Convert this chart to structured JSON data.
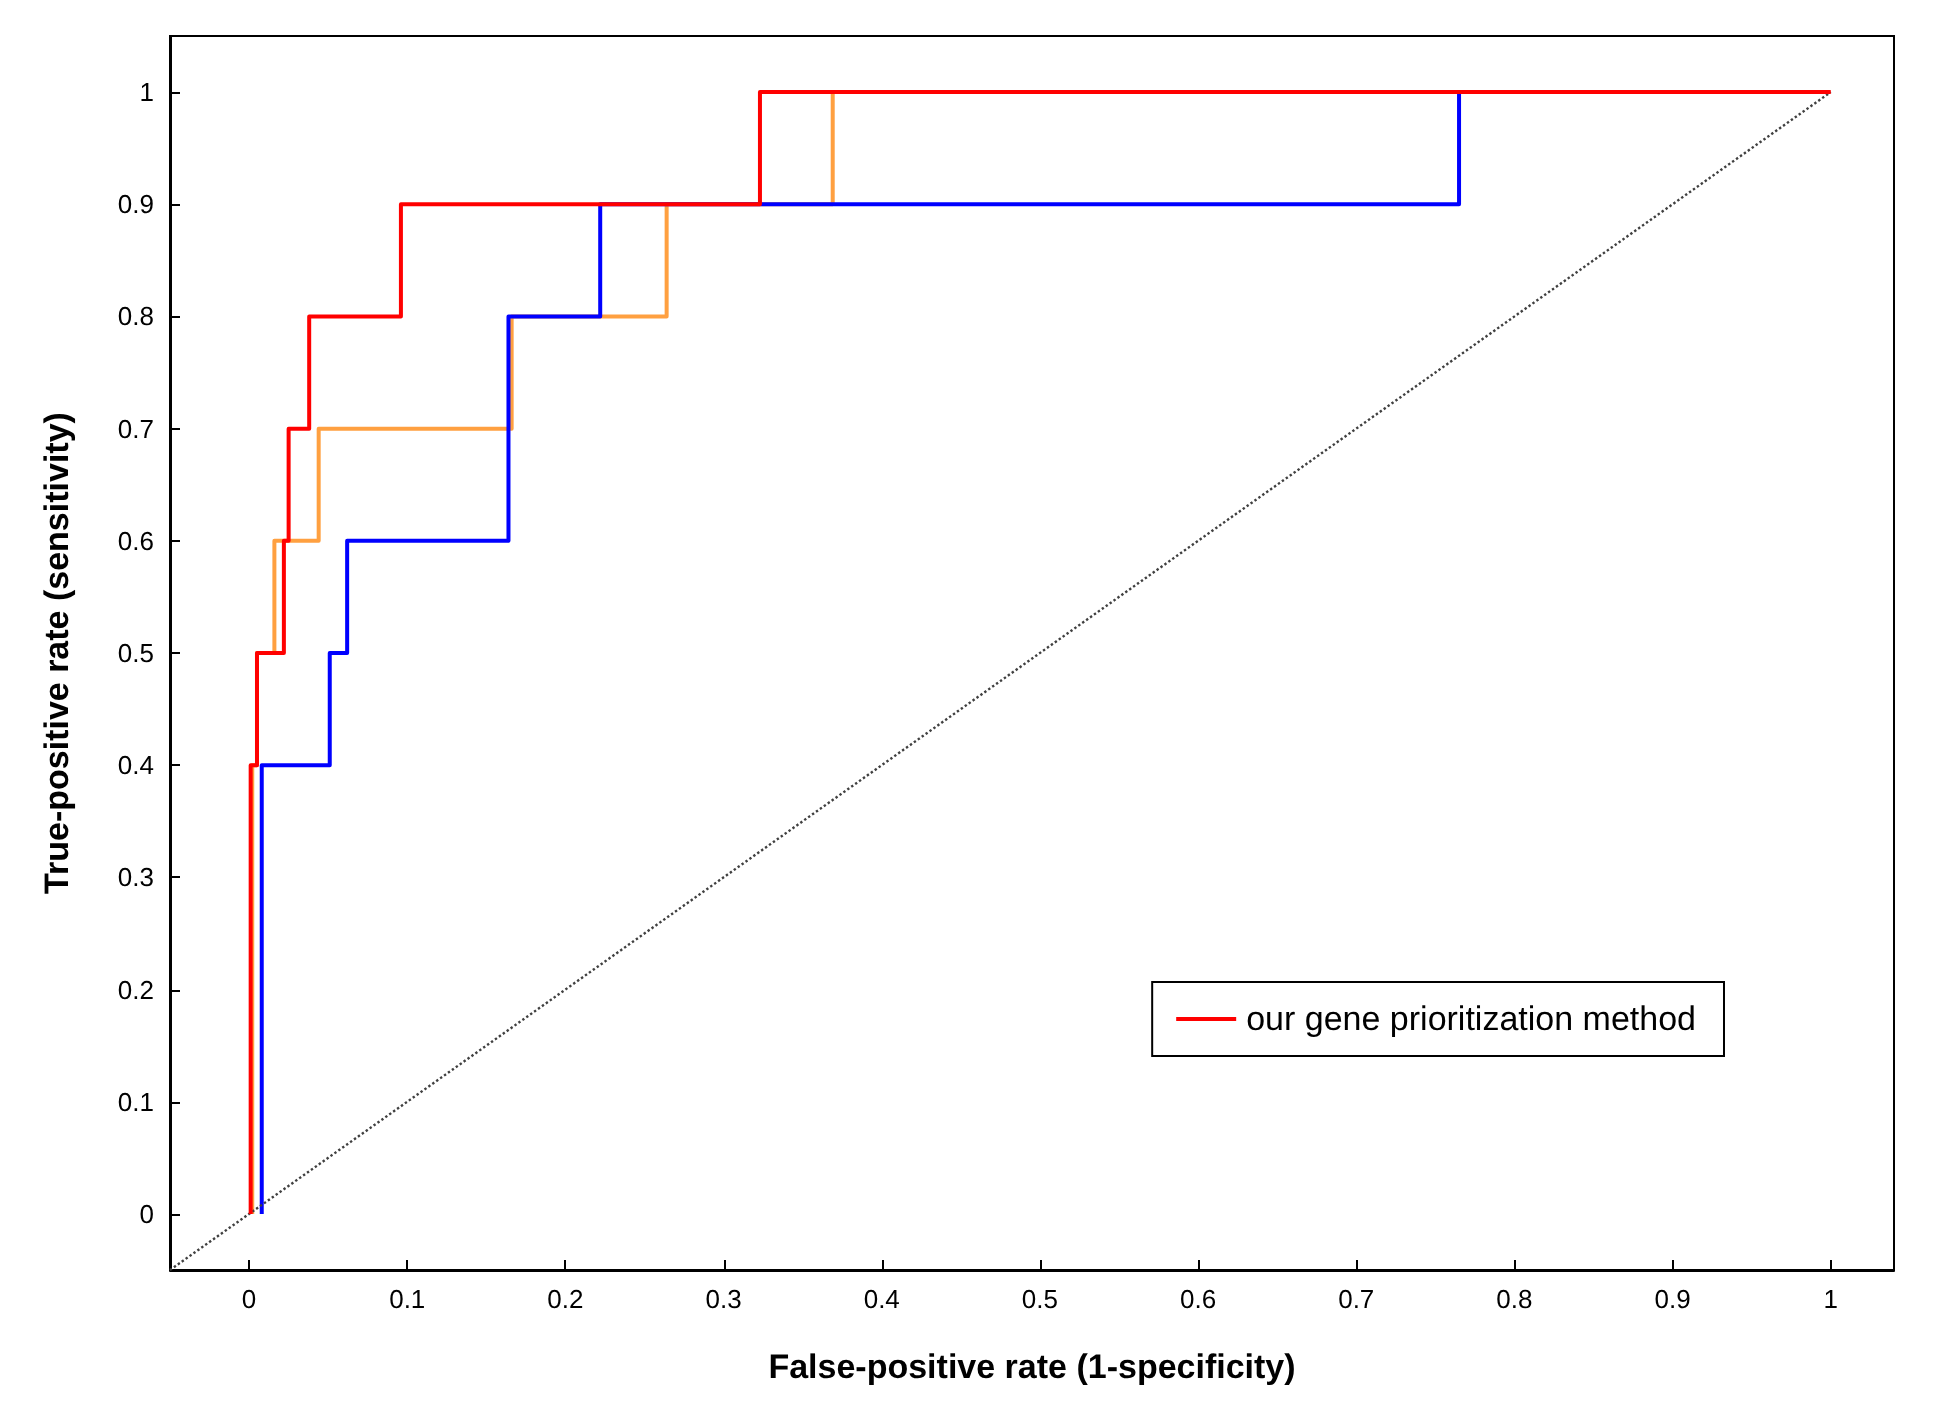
{
  "chart_data": {
    "type": "line",
    "xlabel": "False-positive rate (1-specificity)",
    "ylabel": "True-positive rate (sensitivity)",
    "xlim": [
      -0.05,
      1.04
    ],
    "ylim": [
      -0.05,
      1.05
    ],
    "xticks": [
      0,
      0.1,
      0.2,
      0.3,
      0.4,
      0.5,
      0.6,
      0.7,
      0.8,
      0.9,
      1
    ],
    "yticks": [
      0,
      0.1,
      0.2,
      0.3,
      0.4,
      0.5,
      0.6,
      0.7,
      0.8,
      0.9,
      1
    ],
    "grid": false,
    "legend": "bottom right",
    "marker": "none",
    "series": [
      {
        "name": "our gene prioritization method",
        "color": "#ff0000",
        "x": [
          0.001,
          0.001,
          0.005,
          0.005,
          0.022,
          0.022,
          0.025,
          0.025,
          0.038,
          0.038,
          0.096,
          0.096,
          0.323,
          0.323,
          1
        ],
        "values": [
          0,
          0.4,
          0.4,
          0.5,
          0.5,
          0.6,
          0.6,
          0.7,
          0.7,
          0.8,
          0.8,
          0.9,
          0.9,
          1,
          1
        ]
      },
      {
        "color": "#ffa040",
        "x": [
          0.002,
          0.002,
          0.005,
          0.005,
          0.016,
          0.016,
          0.044,
          0.044,
          0.166,
          0.166,
          0.264,
          0.264,
          0.369,
          0.369
        ],
        "values": [
          0,
          0.4,
          0.4,
          0.5,
          0.5,
          0.6,
          0.6,
          0.7,
          0.7,
          0.8,
          0.8,
          0.9,
          0.9,
          1
        ]
      },
      {
        "color": "#0000ff",
        "x": [
          0.008,
          0.008,
          0.051,
          0.051,
          0.062,
          0.062,
          0.164,
          0.164,
          0.222,
          0.222,
          0.765,
          0.765
        ],
        "values": [
          0,
          0.4,
          0.4,
          0.5,
          0.5,
          0.6,
          0.6,
          0.8,
          0.8,
          0.9,
          0.9,
          1
        ]
      },
      {
        "color": "#404040",
        "line_style": "dotted",
        "x": [
          -0.05,
          1
        ],
        "values": [
          -0.05,
          1
        ]
      }
    ]
  }
}
